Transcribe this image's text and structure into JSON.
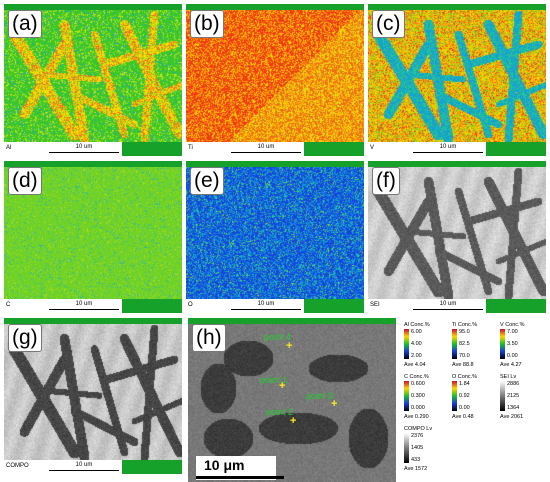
{
  "panels": [
    {
      "id": "a",
      "label": "(a)",
      "element": "Al",
      "scale": "10 um"
    },
    {
      "id": "b",
      "label": "(b)",
      "element": "Ti",
      "scale": "10 um"
    },
    {
      "id": "c",
      "label": "(c)",
      "element": "V",
      "scale": "10 um"
    },
    {
      "id": "d",
      "label": "(d)",
      "element": "C",
      "scale": "10 um"
    },
    {
      "id": "e",
      "label": "(e)",
      "element": "O",
      "scale": "10 um"
    },
    {
      "id": "f",
      "label": "(f)",
      "element": "SEI",
      "scale": "10 um"
    },
    {
      "id": "g",
      "label": "(g)",
      "element": "COMPO",
      "scale": "10 um"
    }
  ],
  "panel_h": {
    "label": "(h)",
    "scale": "10 μm",
    "points": [
      "point 4",
      "point 1",
      "point 3",
      "point 2"
    ]
  },
  "legends": [
    {
      "title": "Al  Conc.%",
      "max": "6.00",
      "mid": "4.00",
      "min": "2.00",
      "ave": "Ave 4.04"
    },
    {
      "title": "Ti  Conc.%",
      "max": "95.0",
      "mid": "82.5",
      "min": "70.0",
      "ave": "Ave 88.8"
    },
    {
      "title": "V  Conc.%",
      "max": "7.00",
      "mid": "3.50",
      "min": "0.00",
      "ave": "Ave 4.27"
    },
    {
      "title": "C  Conc.%",
      "max": "0.600",
      "mid": "0.300",
      "min": "0.000",
      "ave": "Ave 0.290"
    },
    {
      "title": "O  Conc.%",
      "max": "1.84",
      "mid": "0.92",
      "min": "0.00",
      "ave": "Ave 0.48"
    },
    {
      "title": "SEI  Lv",
      "max": "2886",
      "mid": "2125",
      "min": "1364",
      "ave": "Ave 2061"
    },
    {
      "title": "COMPO  Lv",
      "max": "2376",
      "mid": "1405",
      "min": "433",
      "ave": "Ave 1572"
    }
  ]
}
